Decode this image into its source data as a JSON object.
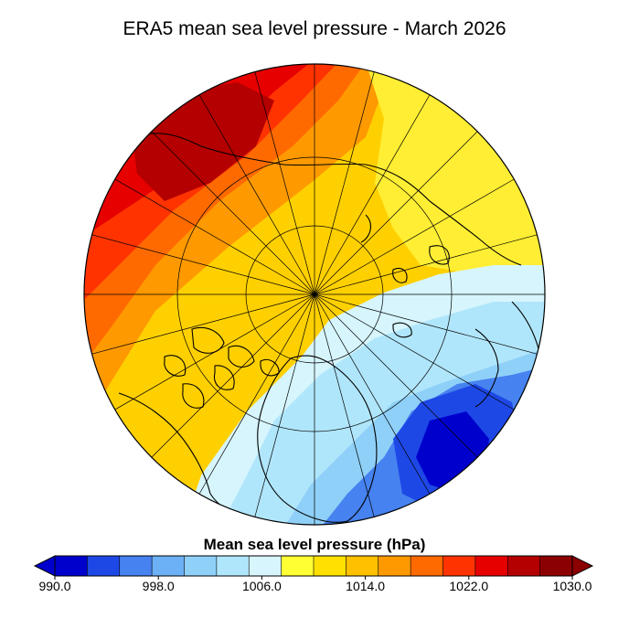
{
  "title": "ERA5 mean sea level pressure - March 2026",
  "colorbar": {
    "title": "Mean sea level pressure (hPa)",
    "min": 990,
    "max": 1030,
    "step": 2.5,
    "tick_labels": [
      "990.0",
      "998.0",
      "1006.0",
      "1014.0",
      "1022.0",
      "1030.0"
    ],
    "tick_values": [
      990,
      998,
      1006,
      1014,
      1022,
      1030
    ],
    "colors": [
      "#0000cd",
      "#1e48e6",
      "#4682f0",
      "#6cb0f5",
      "#8fd0f8",
      "#b0e6fb",
      "#d6f5fd",
      "#ffff33",
      "#ffe000",
      "#ffc000",
      "#ff9900",
      "#ff6a00",
      "#ff3300",
      "#e60000",
      "#b40000",
      "#8b0000"
    ],
    "under_color": "#0000cd",
    "over_color": "#8b0000"
  },
  "map": {
    "projection": "north-polar-stereographic",
    "field": "mean sea level pressure",
    "pattern": "high pressure over Siberia / upper-left, low pressure over Greenland and North Atlantic / lower-right"
  }
}
